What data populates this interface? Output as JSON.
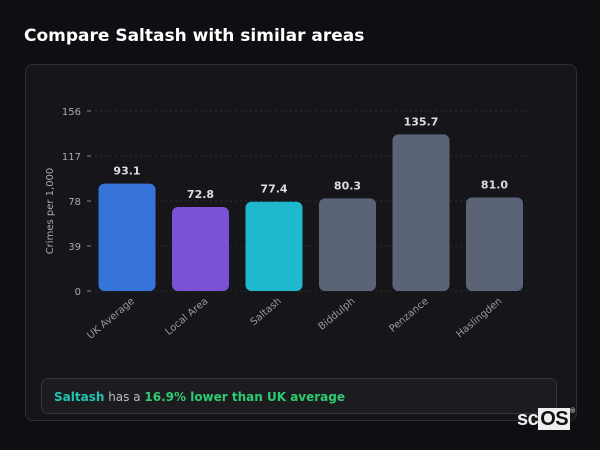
{
  "header": {
    "title": "Compare Saltash with similar areas"
  },
  "chart_data": {
    "type": "bar",
    "categories": [
      "UK Average",
      "Local Area",
      "Saltash",
      "Biddulph",
      "Penzance",
      "Haslingden"
    ],
    "values": [
      93.1,
      72.8,
      77.4,
      80.3,
      135.7,
      81.0
    ],
    "value_labels": [
      "93.1",
      "72.8",
      "77.4",
      "80.3",
      "135.7",
      "81.0"
    ],
    "colors": [
      "#3674d9",
      "#7b52d4",
      "#1fb8cf",
      "#5a6476",
      "#5a6476",
      "#5a6476"
    ],
    "ylabel": "Crimes per 1,000",
    "xlabel": "",
    "yticks": [
      0,
      39,
      78,
      117,
      156
    ],
    "ylim": [
      0,
      156
    ],
    "grid": true
  },
  "summary": {
    "area": "Saltash",
    "middle": " has a ",
    "comparison": "16.9% lower than UK average"
  },
  "logo": {
    "text": "scOS"
  }
}
